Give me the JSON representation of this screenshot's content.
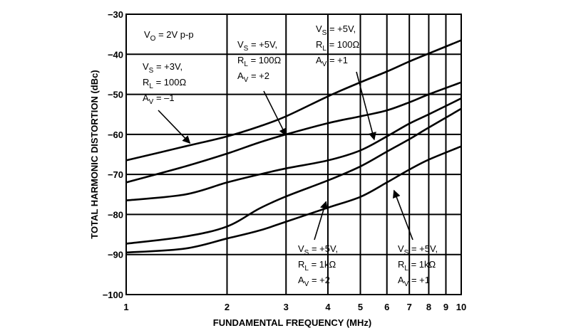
{
  "chart_data": {
    "type": "line",
    "xlabel": "FUNDAMENTAL FREQUENCY (MHz)",
    "ylabel": "TOTAL HARMONIC DISTORTION (dBc)",
    "x_scale": "log",
    "xlim": [
      1,
      10
    ],
    "ylim": [
      -100,
      -30
    ],
    "x_ticks": [
      1,
      2,
      3,
      4,
      5,
      6,
      7,
      8,
      9,
      10
    ],
    "y_ticks": [
      -100,
      -90,
      -80,
      -70,
      -60,
      -50,
      -40,
      -30
    ],
    "grid": true,
    "series": [
      {
        "x": [
          1,
          1.5,
          2,
          2.5,
          3,
          4,
          5,
          6,
          7,
          8,
          10
        ],
        "y": [
          -66.5,
          -63,
          -60.5,
          -58,
          -55.5,
          -50.5,
          -47,
          -44.3,
          -41.8,
          -39.8,
          -36.5
        ]
      },
      {
        "x": [
          1,
          1.5,
          2,
          2.5,
          3,
          4,
          5,
          6,
          7,
          8,
          10
        ],
        "y": [
          -72,
          -68,
          -64.8,
          -62,
          -60,
          -57.2,
          -55.5,
          -54,
          -52,
          -50,
          -47
        ]
      },
      {
        "x": [
          1,
          1.5,
          2,
          2.5,
          3,
          4,
          5,
          6,
          7,
          8,
          10
        ],
        "y": [
          -76.5,
          -75,
          -72,
          -70,
          -68.5,
          -66.5,
          -64,
          -60.5,
          -57.3,
          -55,
          -51
        ]
      },
      {
        "x": [
          1,
          1.5,
          2,
          2.5,
          3,
          4,
          5,
          6,
          7,
          8,
          10
        ],
        "y": [
          -87.3,
          -85.5,
          -83,
          -78.5,
          -75.5,
          -71.5,
          -68,
          -64.3,
          -61.2,
          -58.3,
          -53.6
        ]
      },
      {
        "x": [
          1,
          1.5,
          2,
          2.5,
          3,
          4,
          5,
          6,
          7,
          8,
          10
        ],
        "y": [
          -89.5,
          -88.5,
          -86,
          -84,
          -81.8,
          -78.3,
          -75.6,
          -72,
          -68.8,
          -66.3,
          -63
        ]
      }
    ],
    "annotations": [
      {
        "lines": [
          "V_O = 2V p-p"
        ]
      },
      {
        "lines": [
          "V_S = +3V,",
          "R_L = 100Ω",
          "A_V = –1"
        ],
        "arrow_to": [
          1.55,
          -62.2
        ]
      },
      {
        "lines": [
          "V_S = +5V,",
          "R_L = 100Ω",
          "A_V = +2"
        ],
        "arrow_to": [
          3,
          -60.3
        ]
      },
      {
        "lines": [
          "V_S = +5V,",
          "R_L = 100Ω",
          "A_V = +1"
        ],
        "arrow_to": [
          5.5,
          -61.3
        ]
      },
      {
        "lines": [
          "V_S = +5V,",
          "R_L = 1kΩ",
          "A_V = +2"
        ],
        "arrow_to": [
          3.95,
          -76.8
        ]
      },
      {
        "lines": [
          "V_S = +5V,",
          "R_L = 1kΩ",
          "A_V = +1"
        ],
        "arrow_to": [
          6.3,
          -74
        ]
      }
    ]
  }
}
